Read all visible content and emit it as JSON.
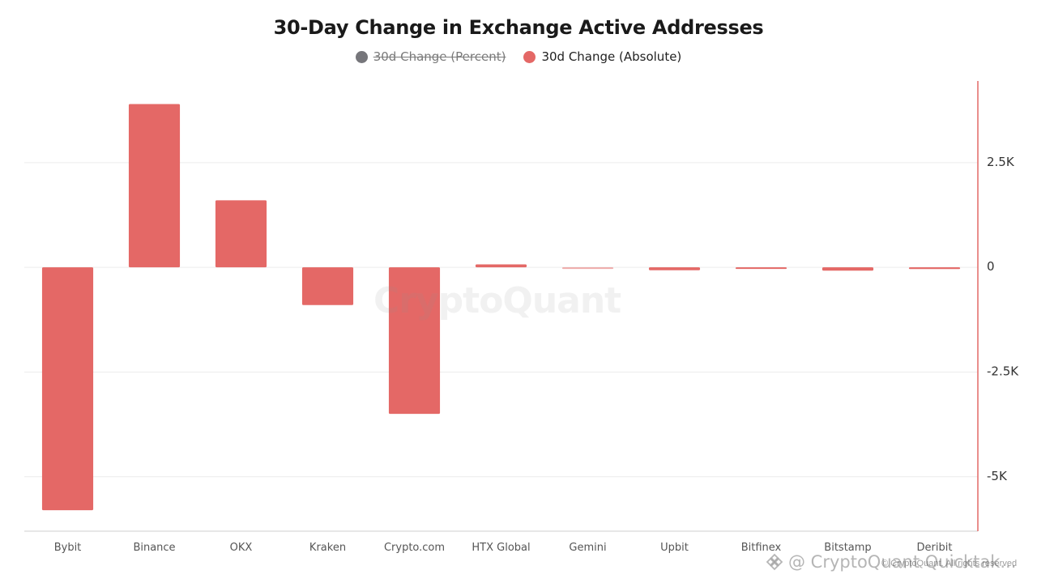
{
  "chart_data": {
    "type": "bar",
    "title": "30-Day Change in Exchange Active Addresses",
    "categories": [
      "Bybit",
      "Binance",
      "OKX",
      "Kraken",
      "Crypto.com",
      "HTX Global",
      "Gemini",
      "Upbit",
      "Bitfinex",
      "Bitstamp",
      "Deribit"
    ],
    "series": [
      {
        "name": "30d Change (Percent)",
        "visible": false,
        "color": "#76767b"
      },
      {
        "name": "30d Change (Absolute)",
        "visible": true,
        "color": "#e46866",
        "values": [
          -5800,
          3900,
          1600,
          -900,
          -3500,
          70,
          -15,
          -70,
          -35,
          -80,
          -40
        ]
      }
    ],
    "ylim": [
      -6300,
      4450
    ],
    "yticks": [
      -5000,
      -2500,
      0,
      2500
    ],
    "ytick_labels": [
      "-5K",
      "-2.5K",
      "0",
      "2.5K"
    ],
    "grid": true,
    "legend_position": "top-center",
    "axis_color": "#e46866"
  },
  "watermark": "CryptoQuant",
  "footer": {
    "brand": "@ CryptoQuant Quicktak...",
    "copyright": "© CryptoQuant. All rights reserved"
  }
}
